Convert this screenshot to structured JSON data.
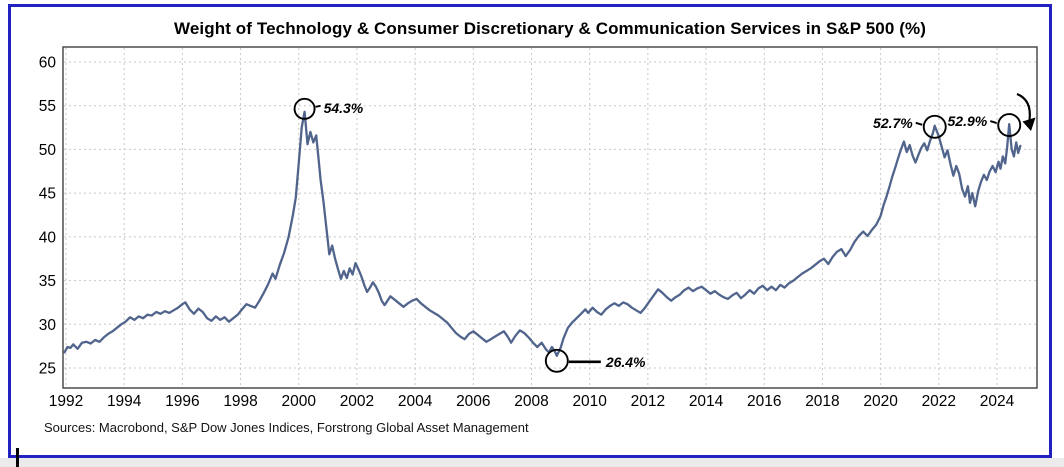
{
  "page": {
    "frame_border_color": "#2222c2",
    "background_color": "#ffffff"
  },
  "chart": {
    "title": "Weight of Technology & Consumer Discretionary & Communication Services in S&P 500 (%)",
    "source_note": "Sources: Macrobond, S&P Dow Jones Indices, Forstrong Global Asset Management"
  },
  "chart_data": {
    "type": "line",
    "title": "Weight of Technology & Consumer Discretionary & Communication Services in S&P 500 (%)",
    "xlabel": "",
    "ylabel": "",
    "xlim": [
      1991.9,
      2025.4
    ],
    "ylim": [
      22.7,
      61.7
    ],
    "x_ticks": [
      1992,
      1994,
      1996,
      1998,
      2000,
      2002,
      2004,
      2006,
      2008,
      2010,
      2012,
      2014,
      2016,
      2018,
      2020,
      2022,
      2024
    ],
    "y_ticks": [
      25,
      30,
      35,
      40,
      45,
      50,
      55,
      60
    ],
    "grid": true,
    "grid_color": "#c7c7c7",
    "line_color": "#50648c",
    "annotation_color": "#000000",
    "annotations": [
      {
        "id": "peak-2000",
        "x": 2000.2,
        "y": 54.3,
        "label": "54.3%",
        "style": "circle-label-right"
      },
      {
        "id": "trough-2009",
        "x": 2008.87,
        "y": 26.4,
        "label": "26.4%",
        "style": "circle-label-right-line"
      },
      {
        "id": "peak-2021",
        "x": 2021.86,
        "y": 52.7,
        "label": "52.7%",
        "style": "circle-label-left"
      },
      {
        "id": "peak-2024",
        "x": 2024.42,
        "y": 52.9,
        "label": "52.9%",
        "style": "circle-label-left"
      }
    ],
    "trend_arrow": {
      "present": true,
      "direction": "down-right",
      "meaning": "current decline after 52.9% peak"
    },
    "series": [
      {
        "name": "Weight of Technology & Consumer Discretionary & Communication Services in S&P 500 (%)",
        "points": [
          [
            1991.95,
            26.8
          ],
          [
            1992.05,
            27.4
          ],
          [
            1992.15,
            27.3
          ],
          [
            1992.25,
            27.7
          ],
          [
            1992.4,
            27.2
          ],
          [
            1992.55,
            27.9
          ],
          [
            1992.7,
            28.0
          ],
          [
            1992.85,
            27.8
          ],
          [
            1993.0,
            28.2
          ],
          [
            1993.15,
            28.0
          ],
          [
            1993.3,
            28.5
          ],
          [
            1993.45,
            28.9
          ],
          [
            1993.6,
            29.2
          ],
          [
            1993.75,
            29.6
          ],
          [
            1993.9,
            30.0
          ],
          [
            1994.05,
            30.3
          ],
          [
            1994.2,
            30.8
          ],
          [
            1994.35,
            30.5
          ],
          [
            1994.5,
            30.9
          ],
          [
            1994.65,
            30.7
          ],
          [
            1994.8,
            31.1
          ],
          [
            1994.95,
            31.0
          ],
          [
            1995.1,
            31.4
          ],
          [
            1995.25,
            31.2
          ],
          [
            1995.4,
            31.5
          ],
          [
            1995.55,
            31.3
          ],
          [
            1995.7,
            31.6
          ],
          [
            1995.85,
            31.9
          ],
          [
            1996.0,
            32.3
          ],
          [
            1996.1,
            32.5
          ],
          [
            1996.25,
            31.7
          ],
          [
            1996.4,
            31.2
          ],
          [
            1996.55,
            31.8
          ],
          [
            1996.7,
            31.4
          ],
          [
            1996.85,
            30.7
          ],
          [
            1997.0,
            30.4
          ],
          [
            1997.15,
            30.9
          ],
          [
            1997.3,
            30.5
          ],
          [
            1997.45,
            30.8
          ],
          [
            1997.6,
            30.3
          ],
          [
            1997.75,
            30.7
          ],
          [
            1997.9,
            31.1
          ],
          [
            1998.05,
            31.7
          ],
          [
            1998.2,
            32.3
          ],
          [
            1998.35,
            32.1
          ],
          [
            1998.5,
            31.9
          ],
          [
            1998.65,
            32.7
          ],
          [
            1998.8,
            33.6
          ],
          [
            1998.95,
            34.6
          ],
          [
            1999.1,
            35.8
          ],
          [
            1999.2,
            35.2
          ],
          [
            1999.35,
            36.8
          ],
          [
            1999.5,
            38.2
          ],
          [
            1999.65,
            40.0
          ],
          [
            1999.8,
            42.5
          ],
          [
            1999.9,
            44.5
          ],
          [
            2000.0,
            48.5
          ],
          [
            2000.1,
            52.5
          ],
          [
            2000.2,
            54.3
          ],
          [
            2000.3,
            50.6
          ],
          [
            2000.4,
            52.0
          ],
          [
            2000.5,
            50.8
          ],
          [
            2000.6,
            51.6
          ],
          [
            2000.68,
            49.0
          ],
          [
            2000.75,
            46.5
          ],
          [
            2000.85,
            44.0
          ],
          [
            2000.95,
            41.0
          ],
          [
            2001.05,
            38.0
          ],
          [
            2001.15,
            39.0
          ],
          [
            2001.25,
            37.5
          ],
          [
            2001.35,
            36.3
          ],
          [
            2001.45,
            35.2
          ],
          [
            2001.55,
            36.1
          ],
          [
            2001.65,
            35.3
          ],
          [
            2001.75,
            36.4
          ],
          [
            2001.85,
            35.7
          ],
          [
            2001.95,
            37.0
          ],
          [
            2002.05,
            36.3
          ],
          [
            2002.15,
            35.5
          ],
          [
            2002.25,
            34.5
          ],
          [
            2002.35,
            33.7
          ],
          [
            2002.45,
            34.2
          ],
          [
            2002.55,
            34.8
          ],
          [
            2002.65,
            34.3
          ],
          [
            2002.75,
            33.6
          ],
          [
            2002.85,
            32.7
          ],
          [
            2002.95,
            32.2
          ],
          [
            2003.05,
            32.7
          ],
          [
            2003.15,
            33.2
          ],
          [
            2003.3,
            32.8
          ],
          [
            2003.45,
            32.4
          ],
          [
            2003.6,
            32.0
          ],
          [
            2003.75,
            32.4
          ],
          [
            2003.9,
            32.7
          ],
          [
            2004.05,
            32.9
          ],
          [
            2004.2,
            32.4
          ],
          [
            2004.35,
            32.0
          ],
          [
            2004.5,
            31.6
          ],
          [
            2004.65,
            31.3
          ],
          [
            2004.8,
            31.0
          ],
          [
            2004.95,
            30.6
          ],
          [
            2005.1,
            30.2
          ],
          [
            2005.25,
            29.6
          ],
          [
            2005.4,
            29.0
          ],
          [
            2005.55,
            28.6
          ],
          [
            2005.7,
            28.3
          ],
          [
            2005.85,
            28.9
          ],
          [
            2006.0,
            29.2
          ],
          [
            2006.15,
            28.8
          ],
          [
            2006.3,
            28.4
          ],
          [
            2006.45,
            28.0
          ],
          [
            2006.6,
            28.3
          ],
          [
            2006.75,
            28.6
          ],
          [
            2006.9,
            28.9
          ],
          [
            2007.05,
            29.2
          ],
          [
            2007.2,
            28.5
          ],
          [
            2007.3,
            27.9
          ],
          [
            2007.45,
            28.7
          ],
          [
            2007.6,
            29.3
          ],
          [
            2007.75,
            29.0
          ],
          [
            2007.9,
            28.5
          ],
          [
            2008.05,
            27.9
          ],
          [
            2008.2,
            27.4
          ],
          [
            2008.35,
            27.9
          ],
          [
            2008.5,
            27.1
          ],
          [
            2008.6,
            26.8
          ],
          [
            2008.7,
            27.4
          ],
          [
            2008.8,
            26.9
          ],
          [
            2008.87,
            26.4
          ],
          [
            2009.0,
            27.3
          ],
          [
            2009.1,
            28.4
          ],
          [
            2009.25,
            29.6
          ],
          [
            2009.4,
            30.2
          ],
          [
            2009.55,
            30.7
          ],
          [
            2009.7,
            31.2
          ],
          [
            2009.85,
            31.7
          ],
          [
            2009.95,
            31.3
          ],
          [
            2010.1,
            31.9
          ],
          [
            2010.25,
            31.4
          ],
          [
            2010.4,
            31.1
          ],
          [
            2010.55,
            31.7
          ],
          [
            2010.7,
            32.1
          ],
          [
            2010.85,
            32.4
          ],
          [
            2011.0,
            32.1
          ],
          [
            2011.15,
            32.5
          ],
          [
            2011.3,
            32.3
          ],
          [
            2011.45,
            31.9
          ],
          [
            2011.6,
            31.6
          ],
          [
            2011.75,
            31.3
          ],
          [
            2011.9,
            31.9
          ],
          [
            2012.05,
            32.6
          ],
          [
            2012.2,
            33.3
          ],
          [
            2012.35,
            34.0
          ],
          [
            2012.5,
            33.6
          ],
          [
            2012.65,
            33.1
          ],
          [
            2012.8,
            32.7
          ],
          [
            2012.95,
            33.1
          ],
          [
            2013.1,
            33.4
          ],
          [
            2013.25,
            33.9
          ],
          [
            2013.4,
            34.2
          ],
          [
            2013.55,
            33.8
          ],
          [
            2013.7,
            34.1
          ],
          [
            2013.85,
            34.3
          ],
          [
            2014.0,
            33.9
          ],
          [
            2014.15,
            33.5
          ],
          [
            2014.3,
            33.8
          ],
          [
            2014.45,
            33.4
          ],
          [
            2014.6,
            33.1
          ],
          [
            2014.75,
            32.9
          ],
          [
            2014.9,
            33.3
          ],
          [
            2015.05,
            33.6
          ],
          [
            2015.2,
            33.0
          ],
          [
            2015.35,
            33.4
          ],
          [
            2015.5,
            33.9
          ],
          [
            2015.65,
            33.5
          ],
          [
            2015.8,
            34.1
          ],
          [
            2015.95,
            34.4
          ],
          [
            2016.1,
            33.9
          ],
          [
            2016.25,
            34.3
          ],
          [
            2016.4,
            33.9
          ],
          [
            2016.55,
            34.5
          ],
          [
            2016.7,
            34.2
          ],
          [
            2016.85,
            34.7
          ],
          [
            2017.0,
            35.0
          ],
          [
            2017.15,
            35.4
          ],
          [
            2017.3,
            35.8
          ],
          [
            2017.45,
            36.1
          ],
          [
            2017.6,
            36.4
          ],
          [
            2017.75,
            36.8
          ],
          [
            2017.9,
            37.2
          ],
          [
            2018.05,
            37.5
          ],
          [
            2018.2,
            36.9
          ],
          [
            2018.35,
            37.7
          ],
          [
            2018.5,
            38.3
          ],
          [
            2018.65,
            38.6
          ],
          [
            2018.8,
            37.8
          ],
          [
            2018.95,
            38.5
          ],
          [
            2019.1,
            39.4
          ],
          [
            2019.25,
            40.1
          ],
          [
            2019.4,
            40.6
          ],
          [
            2019.55,
            40.1
          ],
          [
            2019.7,
            40.8
          ],
          [
            2019.85,
            41.4
          ],
          [
            2020.0,
            42.4
          ],
          [
            2020.1,
            43.6
          ],
          [
            2020.2,
            44.6
          ],
          [
            2020.3,
            45.7
          ],
          [
            2020.4,
            46.9
          ],
          [
            2020.5,
            47.9
          ],
          [
            2020.6,
            49.0
          ],
          [
            2020.7,
            50.0
          ],
          [
            2020.8,
            50.9
          ],
          [
            2020.9,
            49.7
          ],
          [
            2021.0,
            50.5
          ],
          [
            2021.1,
            49.3
          ],
          [
            2021.2,
            48.5
          ],
          [
            2021.3,
            49.4
          ],
          [
            2021.4,
            50.2
          ],
          [
            2021.5,
            50.7
          ],
          [
            2021.6,
            49.9
          ],
          [
            2021.7,
            51.0
          ],
          [
            2021.8,
            51.9
          ],
          [
            2021.86,
            52.7
          ],
          [
            2022.0,
            51.5
          ],
          [
            2022.1,
            50.3
          ],
          [
            2022.2,
            49.1
          ],
          [
            2022.3,
            49.9
          ],
          [
            2022.4,
            48.3
          ],
          [
            2022.5,
            47.0
          ],
          [
            2022.6,
            48.1
          ],
          [
            2022.7,
            47.2
          ],
          [
            2022.8,
            45.5
          ],
          [
            2022.9,
            44.6
          ],
          [
            2023.0,
            45.8
          ],
          [
            2023.07,
            43.9
          ],
          [
            2023.15,
            45.0
          ],
          [
            2023.25,
            43.5
          ],
          [
            2023.35,
            45.2
          ],
          [
            2023.45,
            46.3
          ],
          [
            2023.55,
            47.1
          ],
          [
            2023.65,
            46.5
          ],
          [
            2023.75,
            47.5
          ],
          [
            2023.85,
            48.1
          ],
          [
            2023.95,
            47.4
          ],
          [
            2024.05,
            48.6
          ],
          [
            2024.12,
            47.8
          ],
          [
            2024.2,
            49.2
          ],
          [
            2024.28,
            48.4
          ],
          [
            2024.35,
            50.3
          ],
          [
            2024.42,
            52.9
          ],
          [
            2024.5,
            50.1
          ],
          [
            2024.58,
            49.2
          ],
          [
            2024.66,
            50.8
          ],
          [
            2024.73,
            49.6
          ],
          [
            2024.8,
            50.4
          ]
        ]
      }
    ]
  }
}
